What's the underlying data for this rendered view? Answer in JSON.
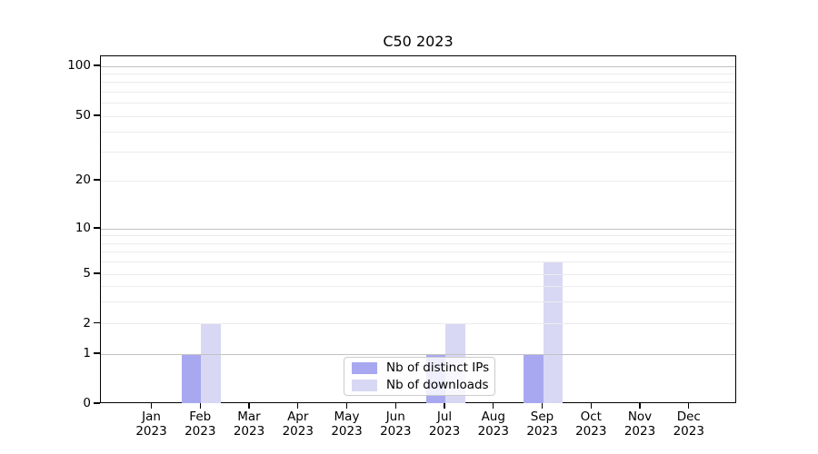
{
  "title": "C50 2023",
  "chart_data": {
    "type": "bar",
    "title": "C50 2023",
    "x_months": [
      "Jan",
      "Feb",
      "Mar",
      "Apr",
      "May",
      "Jun",
      "Jul",
      "Aug",
      "Sep",
      "Oct",
      "Nov",
      "Dec"
    ],
    "x_year": "2023",
    "series": [
      {
        "name": "Nb of distinct IPs",
        "color": "#a8a8f0",
        "values": [
          0,
          1,
          0,
          0,
          0,
          0,
          1,
          0,
          1,
          0,
          0,
          0
        ]
      },
      {
        "name": "Nb of downloads",
        "color": "#d8d8f5",
        "values": [
          0,
          2,
          0,
          0,
          0,
          0,
          2,
          0,
          6,
          0,
          0,
          0
        ]
      }
    ],
    "yscale": "symlog",
    "ylim": [
      0,
      115
    ],
    "y_ticks": [
      0,
      1,
      2,
      5,
      10,
      20,
      50,
      100
    ],
    "y_major_gridlines": [
      1,
      10,
      100
    ],
    "y_minor_gridlines": [
      2,
      3,
      4,
      5,
      6,
      7,
      8,
      9,
      20,
      30,
      40,
      50,
      60,
      70,
      80,
      90
    ],
    "grid": "horizontal",
    "legend_position": "lower center"
  }
}
